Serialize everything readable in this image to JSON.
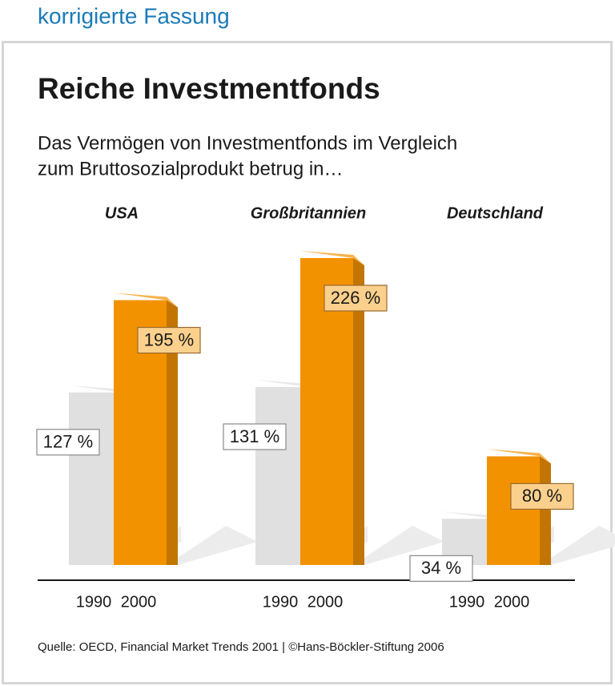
{
  "header": "korrigierte Fassung",
  "chart_data": {
    "type": "bar3d",
    "title": "Reiche Investmentfonds",
    "subtitle": [
      "Das Vermögen von Investmentfonds im Vergleich",
      "zum Bruttosozialprodukt betrug in…"
    ],
    "categories": [
      "USA",
      "Großbritannien",
      "Deutschland"
    ],
    "series": [
      {
        "name": "1990",
        "color": "#e0e0e0",
        "values": [
          127,
          131,
          34
        ],
        "value_labels": [
          "127 %",
          "131 %",
          "34 %"
        ]
      },
      {
        "name": "2000",
        "color": "#f39200",
        "values": [
          195,
          226,
          80
        ],
        "value_labels": [
          "195 %",
          "226 %",
          "80 %"
        ]
      }
    ],
    "source": "Quelle: OECD, Financial Market Trends 2001 | ©Hans-Böckler-Stiftung 2006"
  }
}
